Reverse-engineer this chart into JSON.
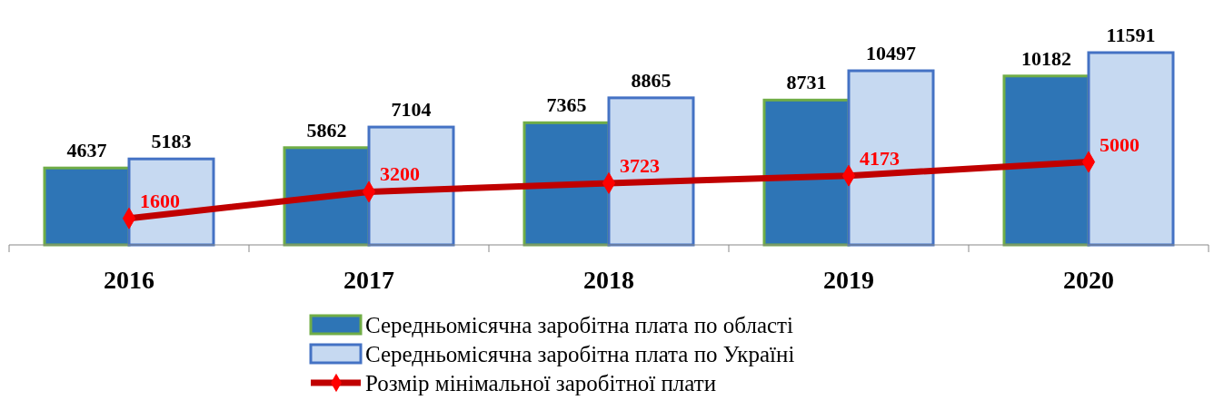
{
  "chart_data": {
    "type": "bar",
    "categories": [
      "2016",
      "2017",
      "2018",
      "2019",
      "2020"
    ],
    "series": [
      {
        "name": "Середньомісячна заробітна плата по області",
        "color": "#2e75b6",
        "values": [
          4637,
          5862,
          7365,
          8731,
          10182
        ]
      },
      {
        "name": "Середньомісячна заробітна плата по Україні",
        "color": "#c6d9f1",
        "values": [
          5183,
          7104,
          8865,
          10497,
          11591
        ]
      },
      {
        "name": "Розмір мінімальної заробітної плати",
        "type": "line",
        "color": "#c00000",
        "values": [
          1600,
          3200,
          3723,
          4173,
          5000
        ]
      }
    ],
    "data_labels": true,
    "legend": "bottom",
    "marker": "diamond",
    "grid": false
  }
}
